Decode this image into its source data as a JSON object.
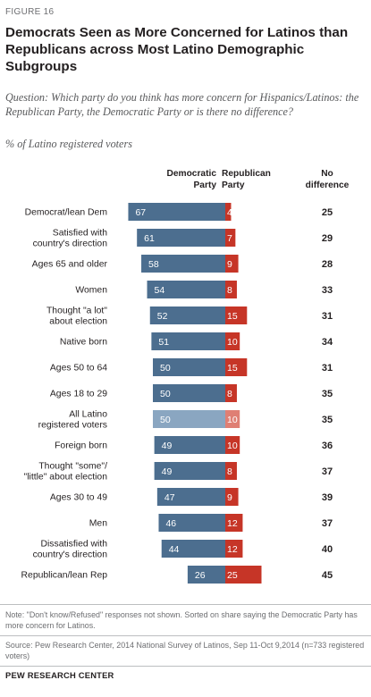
{
  "figure_label": "FIGURE 16",
  "title": "Democrats Seen as More Concerned for Latinos than Republicans across Most Latino Demographic Subgroups",
  "question": "Question: Which party do you think has more concern for Hispanics/Latinos: the Republican Party, the Democratic Party or is there no difference?",
  "unit_label": "% of Latino registered voters",
  "column_headers": {
    "democratic": "Democratic Party",
    "republican": "Republican Party",
    "no_difference": "No difference"
  },
  "colors": {
    "democratic": "#4c6e8f",
    "republican": "#c63527",
    "highlight_democratic": "#8aa6c1",
    "highlight_republican": "#df7f74"
  },
  "chart_data": {
    "type": "bar",
    "orientation": "horizontal-diverging",
    "categories": [
      "Democrat/lean Dem",
      "Satisfied with country's direction",
      "Ages 65 and older",
      "Women",
      "Thought \"a lot\" about election",
      "Native born",
      "Ages 50 to 64",
      "Ages 18 to 29",
      "All Latino registered voters",
      "Foreign born",
      "Thought \"some\"/ \"little\" about election",
      "Ages 30 to 49",
      "Men",
      "Dissatisfied with country's direction",
      "Republican/lean Rep"
    ],
    "category_lines": [
      [
        "Democrat/lean Dem"
      ],
      [
        "Satisfied with",
        "country's direction"
      ],
      [
        "Ages 65 and older"
      ],
      [
        "Women"
      ],
      [
        "Thought \"a lot\"",
        "about election"
      ],
      [
        "Native born"
      ],
      [
        "Ages 50 to 64"
      ],
      [
        "Ages 18 to 29"
      ],
      [
        "All Latino",
        "registered voters"
      ],
      [
        "Foreign born"
      ],
      [
        "Thought \"some\"/",
        "\"little\" about election"
      ],
      [
        "Ages 30 to 49"
      ],
      [
        "Men"
      ],
      [
        "Dissatisfied with",
        "country's direction"
      ],
      [
        "Republican/lean Rep"
      ]
    ],
    "series": [
      {
        "name": "Democratic Party",
        "values": [
          67,
          61,
          58,
          54,
          52,
          51,
          50,
          50,
          50,
          49,
          49,
          47,
          46,
          44,
          26
        ]
      },
      {
        "name": "Republican Party",
        "values": [
          4,
          7,
          9,
          8,
          15,
          10,
          15,
          8,
          10,
          10,
          8,
          9,
          12,
          12,
          25
        ]
      },
      {
        "name": "No difference",
        "values": [
          25,
          29,
          28,
          33,
          31,
          34,
          31,
          35,
          35,
          36,
          37,
          39,
          37,
          40,
          45
        ]
      }
    ],
    "highlight_category": "All Latino registered voters"
  },
  "note": "Note: \"Don't know/Refused\" responses not shown. Sorted on share saying the Democratic Party has more concern for Latinos.",
  "source": "Source: Pew Research Center, 2014 National Survey of Latinos, Sep 11-Oct 9,2014 (n=733 registered voters)",
  "organization": "PEW RESEARCH CENTER"
}
